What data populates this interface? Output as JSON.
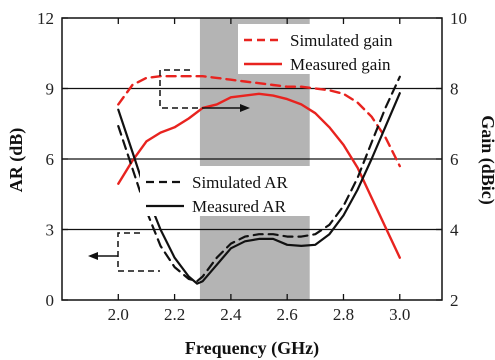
{
  "chart_data": {
    "type": "line",
    "xlabel": "Frequency (GHz)",
    "ylabel_left": "AR (dB)",
    "ylabel_right": "Gain (dBic)",
    "xlim": [
      1.8,
      3.15
    ],
    "ylim_left": [
      0,
      12
    ],
    "ylim_right": [
      2,
      10
    ],
    "x_ticks": [
      "2.0",
      "2.2",
      "2.4",
      "2.6",
      "2.8",
      "3.0"
    ],
    "y_ticks_left": [
      "0",
      "3",
      "6",
      "9",
      "12"
    ],
    "y_ticks_right": [
      "2",
      "4",
      "6",
      "8",
      "10"
    ],
    "shaded_band": [
      2.29,
      2.68
    ],
    "shaded_color": "#b4b4b4",
    "grid_lines_left": [
      3,
      6,
      9
    ],
    "legend_gain": [
      "Simulated gain",
      "Measured gain"
    ],
    "legend_ar": [
      "Simulated AR",
      "Measured AR"
    ],
    "series": [
      {
        "name": "Simulated gain",
        "axis": "right",
        "color": "#e8231f",
        "style": "dashed",
        "x": [
          2.0,
          2.05,
          2.1,
          2.15,
          2.2,
          2.25,
          2.3,
          2.35,
          2.4,
          2.45,
          2.5,
          2.55,
          2.6,
          2.65,
          2.7,
          2.75,
          2.8,
          2.85,
          2.9,
          2.95,
          3.0
        ],
        "values": [
          7.55,
          8.1,
          8.3,
          8.35,
          8.35,
          8.35,
          8.35,
          8.3,
          8.25,
          8.2,
          8.15,
          8.1,
          8.05,
          8.05,
          8.0,
          7.95,
          7.85,
          7.6,
          7.2,
          6.6,
          5.8
        ]
      },
      {
        "name": "Measured gain",
        "axis": "right",
        "color": "#e8231f",
        "style": "solid",
        "x": [
          2.0,
          2.05,
          2.1,
          2.15,
          2.2,
          2.25,
          2.3,
          2.35,
          2.4,
          2.45,
          2.5,
          2.55,
          2.6,
          2.65,
          2.7,
          2.75,
          2.8,
          2.85,
          2.9,
          2.95,
          3.0
        ],
        "values": [
          5.3,
          5.95,
          6.5,
          6.75,
          6.9,
          7.15,
          7.45,
          7.55,
          7.75,
          7.8,
          7.85,
          7.8,
          7.7,
          7.55,
          7.3,
          6.9,
          6.4,
          5.75,
          4.9,
          4.05,
          3.2
        ]
      },
      {
        "name": "Simulated AR",
        "axis": "left",
        "color": "#111111",
        "style": "dashed",
        "x": [
          2.0,
          2.05,
          2.1,
          2.15,
          2.2,
          2.25,
          2.28,
          2.3,
          2.35,
          2.4,
          2.45,
          2.5,
          2.55,
          2.6,
          2.65,
          2.7,
          2.75,
          2.8,
          2.85,
          2.9,
          2.95,
          3.0
        ],
        "values": [
          7.4,
          5.6,
          3.8,
          2.3,
          1.4,
          0.9,
          0.8,
          1.0,
          1.8,
          2.4,
          2.7,
          2.8,
          2.8,
          2.7,
          2.7,
          2.8,
          3.2,
          4.0,
          5.2,
          6.7,
          8.2,
          9.5
        ]
      },
      {
        "name": "Measured AR",
        "axis": "left",
        "color": "#111111",
        "style": "solid",
        "x": [
          2.0,
          2.05,
          2.1,
          2.15,
          2.2,
          2.25,
          2.28,
          2.3,
          2.35,
          2.4,
          2.45,
          2.5,
          2.55,
          2.6,
          2.65,
          2.7,
          2.75,
          2.8,
          2.85,
          2.9,
          2.95,
          3.0
        ],
        "values": [
          8.1,
          6.3,
          4.5,
          3.0,
          1.8,
          1.0,
          0.7,
          0.8,
          1.5,
          2.2,
          2.5,
          2.6,
          2.6,
          2.35,
          2.3,
          2.35,
          2.8,
          3.6,
          4.7,
          6.0,
          7.4,
          8.8
        ]
      }
    ]
  }
}
